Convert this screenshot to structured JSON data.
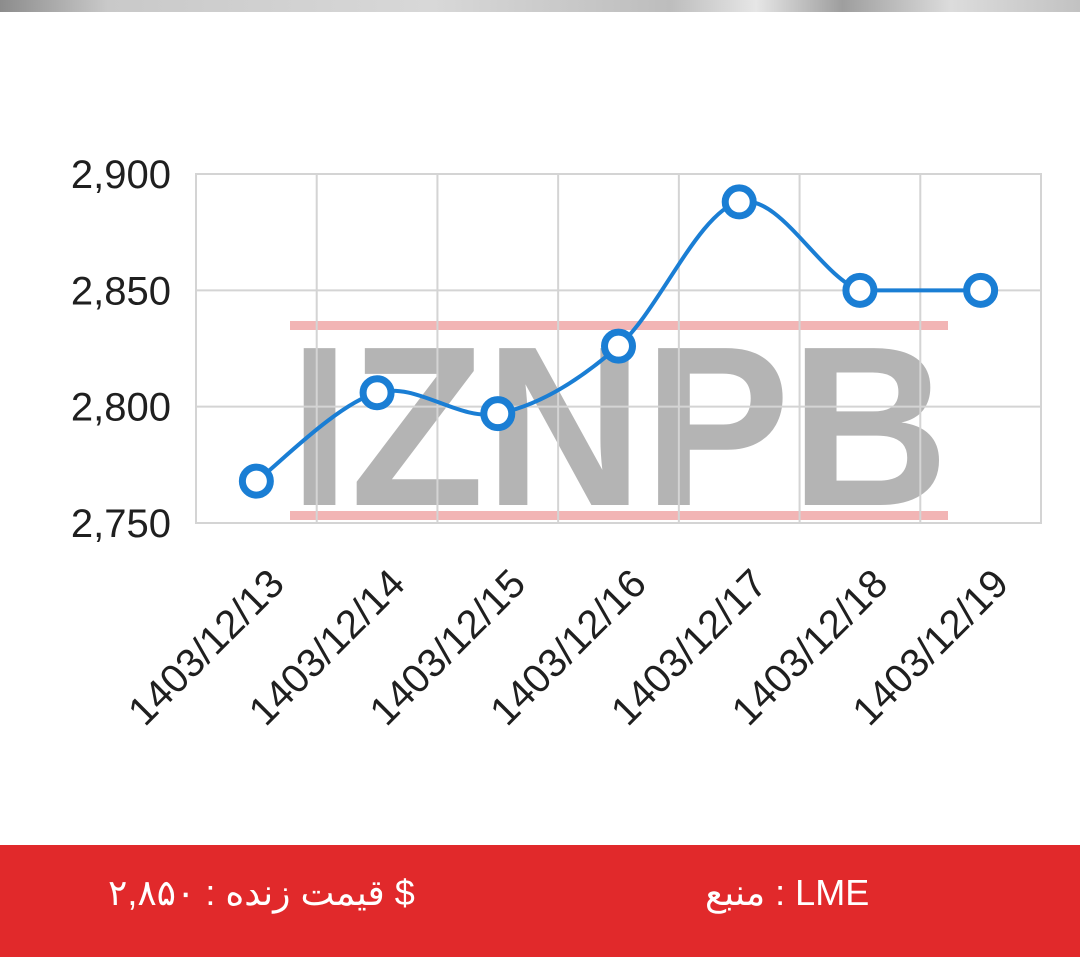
{
  "chart_data": {
    "type": "line",
    "categories": [
      "1403/12/13",
      "1403/12/14",
      "1403/12/15",
      "1403/12/16",
      "1403/12/17",
      "1403/12/18",
      "1403/12/19"
    ],
    "series": [
      {
        "values": [
          2768,
          2806,
          2797,
          2826,
          2888,
          2850,
          2850
        ]
      }
    ],
    "yticks": [
      "2,750",
      "2,800",
      "2,850",
      "2,900"
    ],
    "ytick_values": [
      2750,
      2800,
      2850,
      2900
    ],
    "ylim": [
      2750,
      2900
    ],
    "grid": true,
    "line_color": "#1a7ed4",
    "grid_color": "#d4d4d4",
    "title": "",
    "xlabel": "",
    "ylabel": ""
  },
  "watermark": {
    "text": "IZNPB",
    "gray_color": "#a8a8a8",
    "red_color": "#f0a8a8"
  },
  "footer": {
    "source": "منبع : LME",
    "live_price": "قیمت زنده : ۲,۸۵۰ $",
    "background": "#e1292b"
  }
}
